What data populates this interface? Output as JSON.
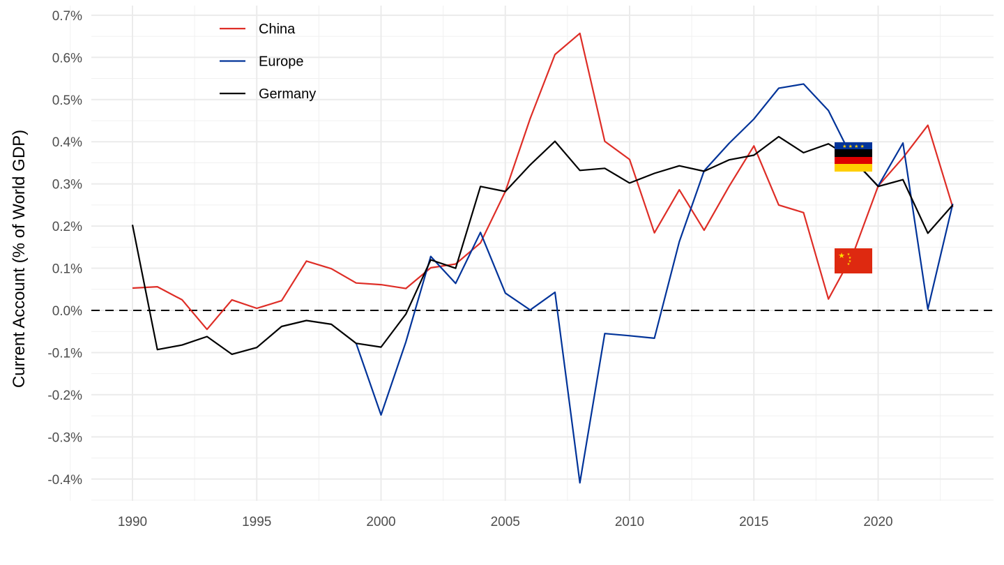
{
  "chart_data": {
    "type": "line",
    "title": "",
    "xlabel": "",
    "ylabel": "Current Account (% of World GDP)",
    "xlim": [
      1988.4,
      2024.6
    ],
    "ylim": [
      -0.45,
      0.7
    ],
    "x_ticks": [
      1990,
      1995,
      2000,
      2005,
      2010,
      2015,
      2020
    ],
    "x_tick_labels": [
      "1990",
      "1995",
      "2000",
      "2005",
      "2010",
      "2015",
      "2020"
    ],
    "y_ticks": [
      -0.4,
      -0.3,
      -0.2,
      -0.1,
      0.0,
      0.1,
      0.2,
      0.3,
      0.4,
      0.5,
      0.6,
      0.7
    ],
    "y_tick_labels": [
      "-0.4%",
      "-0.3%",
      "-0.2%",
      "-0.1%",
      "0.0%",
      "0.1%",
      "0.2%",
      "0.3%",
      "0.4%",
      "0.5%",
      "0.6%",
      "0.7%"
    ],
    "grid": true,
    "reference_line": {
      "y": 0,
      "style": "dashed"
    },
    "legend_position": "top-left",
    "x": [
      1990,
      1991,
      1992,
      1993,
      1994,
      1995,
      1996,
      1997,
      1998,
      1999,
      2000,
      2001,
      2002,
      2003,
      2004,
      2005,
      2006,
      2007,
      2008,
      2009,
      2010,
      2011,
      2012,
      2013,
      2014,
      2015,
      2016,
      2017,
      2018,
      2019,
      2020,
      2021,
      2022,
      2023
    ],
    "series": [
      {
        "name": "China",
        "color": "#de2d26",
        "values": [
          0.053,
          0.056,
          0.025,
          -0.045,
          0.025,
          0.005,
          0.023,
          0.117,
          0.099,
          0.065,
          0.061,
          0.052,
          0.101,
          0.11,
          0.16,
          0.282,
          0.455,
          0.607,
          0.657,
          0.401,
          0.358,
          0.184,
          0.286,
          0.19,
          0.294,
          0.39,
          0.25,
          0.232,
          0.027,
          0.135,
          0.295,
          0.362,
          0.439,
          0.245
        ]
      },
      {
        "name": "Europe",
        "color": "#003399",
        "values": [
          null,
          null,
          null,
          null,
          null,
          null,
          null,
          null,
          null,
          -0.078,
          -0.248,
          -0.075,
          0.128,
          0.064,
          0.185,
          0.041,
          0.001,
          0.043,
          -0.409,
          -0.055,
          -0.06,
          -0.066,
          0.163,
          0.331,
          0.396,
          0.454,
          0.527,
          0.537,
          0.474,
          0.356,
          0.295,
          0.397,
          0.003,
          0.253
        ]
      },
      {
        "name": "Germany",
        "color": "#000000",
        "values": [
          0.203,
          -0.093,
          -0.082,
          -0.062,
          -0.104,
          -0.088,
          -0.038,
          -0.024,
          -0.033,
          -0.078,
          -0.087,
          -0.009,
          0.12,
          0.1,
          0.294,
          0.282,
          0.345,
          0.401,
          0.332,
          0.337,
          0.302,
          0.325,
          0.343,
          0.33,
          0.357,
          0.368,
          0.412,
          0.374,
          0.395,
          0.358,
          0.294,
          0.31,
          0.183,
          0.25
        ]
      }
    ]
  }
}
